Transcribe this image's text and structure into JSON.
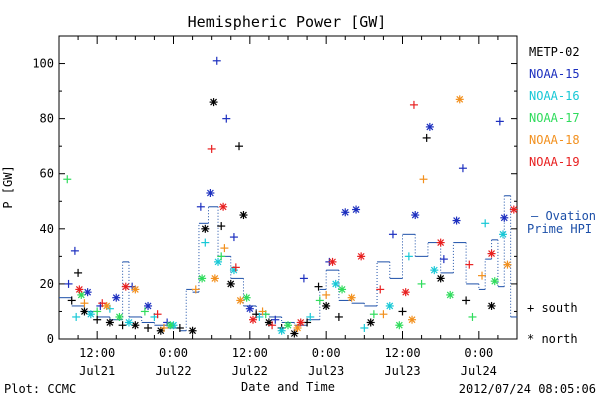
{
  "footer": {
    "plot_label": "Plot: CCMC",
    "timestamp": "2012/07/24 08:05:06"
  },
  "chart_data": {
    "type": "scatter",
    "title": "Hemispheric Power [GW]",
    "xlabel": "Date and Time",
    "ylabel": "P [GW]",
    "ylim": [
      0,
      110
    ],
    "x_unit": "hours since 2012-07-21 00:00",
    "xlim": [
      6,
      78
    ],
    "grid": false,
    "yticks": [
      0,
      20,
      40,
      60,
      80,
      100
    ],
    "xticks": [
      {
        "x": 12,
        "time": "12:00",
        "date": "Jul21"
      },
      {
        "x": 24,
        "time": "0:00",
        "date": "Jul22"
      },
      {
        "x": 36,
        "time": "12:00",
        "date": "Jul22"
      },
      {
        "x": 48,
        "time": "0:00",
        "date": "Jul23"
      },
      {
        "x": 60,
        "time": "12:00",
        "date": "Jul23"
      },
      {
        "x": 72,
        "time": "0:00",
        "date": "Jul24"
      }
    ],
    "legend_position": "right",
    "symbol_legend": {
      "south": "+ south",
      "north": "* north"
    },
    "ovation_label": [
      "– Ovation",
      "Prime HPI"
    ],
    "series": [
      {
        "name": "METP-02",
        "color": "#000000",
        "points": [
          {
            "x": 8.0,
            "y": 14,
            "m": "+"
          },
          {
            "x": 9.0,
            "y": 24,
            "m": "+"
          },
          {
            "x": 10.0,
            "y": 10,
            "m": "*"
          },
          {
            "x": 12.0,
            "y": 7,
            "m": "+"
          },
          {
            "x": 14.0,
            "y": 6,
            "m": "*"
          },
          {
            "x": 16.0,
            "y": 5,
            "m": "+"
          },
          {
            "x": 18.0,
            "y": 5,
            "m": "*"
          },
          {
            "x": 20.0,
            "y": 4,
            "m": "+"
          },
          {
            "x": 22.0,
            "y": 3,
            "m": "*"
          },
          {
            "x": 25.0,
            "y": 4,
            "m": "+"
          },
          {
            "x": 27.0,
            "y": 3,
            "m": "*"
          },
          {
            "x": 29.0,
            "y": 40,
            "m": "*"
          },
          {
            "x": 30.3,
            "y": 86,
            "m": "*"
          },
          {
            "x": 31.5,
            "y": 41,
            "m": "+"
          },
          {
            "x": 33.0,
            "y": 20,
            "m": "*"
          },
          {
            "x": 34.3,
            "y": 70,
            "m": "+"
          },
          {
            "x": 35.0,
            "y": 45,
            "m": "*"
          },
          {
            "x": 37.0,
            "y": 9,
            "m": "+"
          },
          {
            "x": 39.0,
            "y": 6,
            "m": "*"
          },
          {
            "x": 41.0,
            "y": 4,
            "m": "+"
          },
          {
            "x": 43.0,
            "y": 2,
            "m": "*"
          },
          {
            "x": 45.0,
            "y": 6,
            "m": "+"
          },
          {
            "x": 46.8,
            "y": 19,
            "m": "+"
          },
          {
            "x": 48.0,
            "y": 12,
            "m": "*"
          },
          {
            "x": 50.0,
            "y": 8,
            "m": "+"
          },
          {
            "x": 55.0,
            "y": 6,
            "m": "*"
          },
          {
            "x": 60.0,
            "y": 10,
            "m": "+"
          },
          {
            "x": 63.8,
            "y": 73,
            "m": "+"
          },
          {
            "x": 66.0,
            "y": 22,
            "m": "*"
          },
          {
            "x": 70.0,
            "y": 14,
            "m": "+"
          },
          {
            "x": 74.0,
            "y": 12,
            "m": "*"
          }
        ]
      },
      {
        "name": "NOAA-15",
        "color": "#1c2fbf",
        "points": [
          {
            "x": 7.5,
            "y": 20,
            "m": "+"
          },
          {
            "x": 8.5,
            "y": 32,
            "m": "+"
          },
          {
            "x": 10.5,
            "y": 17,
            "m": "*"
          },
          {
            "x": 12.5,
            "y": 12,
            "m": "+"
          },
          {
            "x": 15.0,
            "y": 15,
            "m": "*"
          },
          {
            "x": 17.5,
            "y": 19,
            "m": "+"
          },
          {
            "x": 20.0,
            "y": 12,
            "m": "*"
          },
          {
            "x": 23.0,
            "y": 6,
            "m": "+"
          },
          {
            "x": 28.3,
            "y": 48,
            "m": "+"
          },
          {
            "x": 29.8,
            "y": 53,
            "m": "*"
          },
          {
            "x": 30.8,
            "y": 101,
            "m": "+"
          },
          {
            "x": 32.3,
            "y": 80,
            "m": "+"
          },
          {
            "x": 33.5,
            "y": 37,
            "m": "+"
          },
          {
            "x": 36.0,
            "y": 11,
            "m": "*"
          },
          {
            "x": 40.0,
            "y": 7,
            "m": "+"
          },
          {
            "x": 44.5,
            "y": 22,
            "m": "+"
          },
          {
            "x": 48.5,
            "y": 28,
            "m": "+"
          },
          {
            "x": 51.0,
            "y": 46,
            "m": "*"
          },
          {
            "x": 52.7,
            "y": 47,
            "m": "*"
          },
          {
            "x": 58.5,
            "y": 38,
            "m": "+"
          },
          {
            "x": 62.0,
            "y": 45,
            "m": "*"
          },
          {
            "x": 64.3,
            "y": 77,
            "m": "*"
          },
          {
            "x": 66.5,
            "y": 29,
            "m": "+"
          },
          {
            "x": 68.5,
            "y": 43,
            "m": "*"
          },
          {
            "x": 69.5,
            "y": 62,
            "m": "+"
          },
          {
            "x": 75.3,
            "y": 79,
            "m": "+"
          },
          {
            "x": 76.0,
            "y": 44,
            "m": "*"
          }
        ]
      },
      {
        "name": "NOAA-16",
        "color": "#17c8d6",
        "points": [
          {
            "x": 8.7,
            "y": 8,
            "m": "+"
          },
          {
            "x": 11.0,
            "y": 9,
            "m": "*"
          },
          {
            "x": 14.0,
            "y": 11,
            "m": "+"
          },
          {
            "x": 17.0,
            "y": 6,
            "m": "*"
          },
          {
            "x": 21.0,
            "y": 8,
            "m": "+"
          },
          {
            "x": 24.0,
            "y": 5,
            "m": "*"
          },
          {
            "x": 29.0,
            "y": 35,
            "m": "+"
          },
          {
            "x": 31.0,
            "y": 28,
            "m": "*"
          },
          {
            "x": 33.5,
            "y": 25,
            "m": "*"
          },
          {
            "x": 37.5,
            "y": 8,
            "m": "+"
          },
          {
            "x": 41.0,
            "y": 3,
            "m": "*"
          },
          {
            "x": 45.5,
            "y": 8,
            "m": "+"
          },
          {
            "x": 49.5,
            "y": 20,
            "m": "*"
          },
          {
            "x": 54.0,
            "y": 4,
            "m": "+"
          },
          {
            "x": 58.0,
            "y": 12,
            "m": "*"
          },
          {
            "x": 61.0,
            "y": 30,
            "m": "+"
          },
          {
            "x": 65.0,
            "y": 25,
            "m": "*"
          },
          {
            "x": 73.0,
            "y": 42,
            "m": "+"
          },
          {
            "x": 75.8,
            "y": 38,
            "m": "*"
          }
        ]
      },
      {
        "name": "NOAA-17",
        "color": "#2fdc5c",
        "points": [
          {
            "x": 7.3,
            "y": 58,
            "m": "+"
          },
          {
            "x": 9.5,
            "y": 16,
            "m": "*"
          },
          {
            "x": 12.0,
            "y": 10,
            "m": "+"
          },
          {
            "x": 15.5,
            "y": 8,
            "m": "*"
          },
          {
            "x": 19.5,
            "y": 10,
            "m": "+"
          },
          {
            "x": 23.5,
            "y": 5,
            "m": "*"
          },
          {
            "x": 28.5,
            "y": 22,
            "m": "*"
          },
          {
            "x": 31.5,
            "y": 30,
            "m": "+"
          },
          {
            "x": 35.5,
            "y": 15,
            "m": "*"
          },
          {
            "x": 38.5,
            "y": 9,
            "m": "+"
          },
          {
            "x": 42.0,
            "y": 5,
            "m": "*"
          },
          {
            "x": 47.0,
            "y": 14,
            "m": "+"
          },
          {
            "x": 50.5,
            "y": 18,
            "m": "*"
          },
          {
            "x": 55.5,
            "y": 9,
            "m": "+"
          },
          {
            "x": 59.5,
            "y": 5,
            "m": "*"
          },
          {
            "x": 63.0,
            "y": 20,
            "m": "+"
          },
          {
            "x": 67.5,
            "y": 16,
            "m": "*"
          },
          {
            "x": 71.0,
            "y": 8,
            "m": "+"
          },
          {
            "x": 74.5,
            "y": 21,
            "m": "*"
          }
        ]
      },
      {
        "name": "NOAA-18",
        "color": "#f2901e",
        "points": [
          {
            "x": 10.0,
            "y": 13,
            "m": "+"
          },
          {
            "x": 13.5,
            "y": 12,
            "m": "*"
          },
          {
            "x": 18.0,
            "y": 18,
            "m": "*"
          },
          {
            "x": 22.5,
            "y": 4,
            "m": "+"
          },
          {
            "x": 27.5,
            "y": 18,
            "m": "+"
          },
          {
            "x": 30.5,
            "y": 22,
            "m": "*"
          },
          {
            "x": 32.0,
            "y": 33,
            "m": "+"
          },
          {
            "x": 34.5,
            "y": 14,
            "m": "*"
          },
          {
            "x": 38.0,
            "y": 10,
            "m": "+"
          },
          {
            "x": 43.5,
            "y": 4,
            "m": "*"
          },
          {
            "x": 48.0,
            "y": 16,
            "m": "+"
          },
          {
            "x": 52.0,
            "y": 15,
            "m": "*"
          },
          {
            "x": 57.0,
            "y": 9,
            "m": "+"
          },
          {
            "x": 61.5,
            "y": 7,
            "m": "*"
          },
          {
            "x": 63.3,
            "y": 58,
            "m": "+"
          },
          {
            "x": 69.0,
            "y": 87,
            "m": "*"
          },
          {
            "x": 72.5,
            "y": 23,
            "m": "+"
          },
          {
            "x": 76.5,
            "y": 27,
            "m": "*"
          }
        ]
      },
      {
        "name": "NOAA-19",
        "color": "#e82020",
        "points": [
          {
            "x": 9.2,
            "y": 18,
            "m": "*"
          },
          {
            "x": 12.8,
            "y": 13,
            "m": "+"
          },
          {
            "x": 16.5,
            "y": 19,
            "m": "*"
          },
          {
            "x": 21.5,
            "y": 9,
            "m": "+"
          },
          {
            "x": 30.0,
            "y": 69,
            "m": "+"
          },
          {
            "x": 31.8,
            "y": 48,
            "m": "*"
          },
          {
            "x": 33.8,
            "y": 26,
            "m": "+"
          },
          {
            "x": 36.5,
            "y": 7,
            "m": "*"
          },
          {
            "x": 39.5,
            "y": 5,
            "m": "+"
          },
          {
            "x": 44.0,
            "y": 6,
            "m": "*"
          },
          {
            "x": 49.0,
            "y": 28,
            "m": "*"
          },
          {
            "x": 53.5,
            "y": 30,
            "m": "*"
          },
          {
            "x": 56.5,
            "y": 18,
            "m": "+"
          },
          {
            "x": 60.5,
            "y": 17,
            "m": "*"
          },
          {
            "x": 61.8,
            "y": 85,
            "m": "+"
          },
          {
            "x": 66.0,
            "y": 35,
            "m": "*"
          },
          {
            "x": 70.5,
            "y": 27,
            "m": "+"
          },
          {
            "x": 74.0,
            "y": 31,
            "m": "*"
          },
          {
            "x": 77.5,
            "y": 47,
            "m": "*"
          }
        ]
      }
    ],
    "hpi_steps": [
      {
        "x": 6,
        "y": 15
      },
      {
        "x": 8,
        "y": 12
      },
      {
        "x": 10,
        "y": 10
      },
      {
        "x": 12,
        "y": 8
      },
      {
        "x": 14,
        "y": 7
      },
      {
        "x": 16,
        "y": 28
      },
      {
        "x": 17,
        "y": 8
      },
      {
        "x": 19,
        "y": 6
      },
      {
        "x": 21,
        "y": 5
      },
      {
        "x": 23,
        "y": 4
      },
      {
        "x": 25,
        "y": 3
      },
      {
        "x": 26,
        "y": 18
      },
      {
        "x": 27,
        "y": 17
      },
      {
        "x": 28,
        "y": 42
      },
      {
        "x": 29.5,
        "y": 48
      },
      {
        "x": 31,
        "y": 30
      },
      {
        "x": 33,
        "y": 22
      },
      {
        "x": 35,
        "y": 12
      },
      {
        "x": 37,
        "y": 9
      },
      {
        "x": 39,
        "y": 8
      },
      {
        "x": 41,
        "y": 6
      },
      {
        "x": 43,
        "y": 5
      },
      {
        "x": 45,
        "y": 7
      },
      {
        "x": 47,
        "y": 18
      },
      {
        "x": 48,
        "y": 25
      },
      {
        "x": 50,
        "y": 14
      },
      {
        "x": 52,
        "y": 13
      },
      {
        "x": 54,
        "y": 12
      },
      {
        "x": 56,
        "y": 28
      },
      {
        "x": 58,
        "y": 22
      },
      {
        "x": 60,
        "y": 38
      },
      {
        "x": 62,
        "y": 30
      },
      {
        "x": 64,
        "y": 35
      },
      {
        "x": 66,
        "y": 24
      },
      {
        "x": 68,
        "y": 35
      },
      {
        "x": 70,
        "y": 20
      },
      {
        "x": 72,
        "y": 18
      },
      {
        "x": 73,
        "y": 29
      },
      {
        "x": 74,
        "y": 36
      },
      {
        "x": 75,
        "y": 19
      },
      {
        "x": 76,
        "y": 52
      },
      {
        "x": 77,
        "y": 8
      },
      {
        "x": 78,
        "y": 8
      }
    ]
  }
}
